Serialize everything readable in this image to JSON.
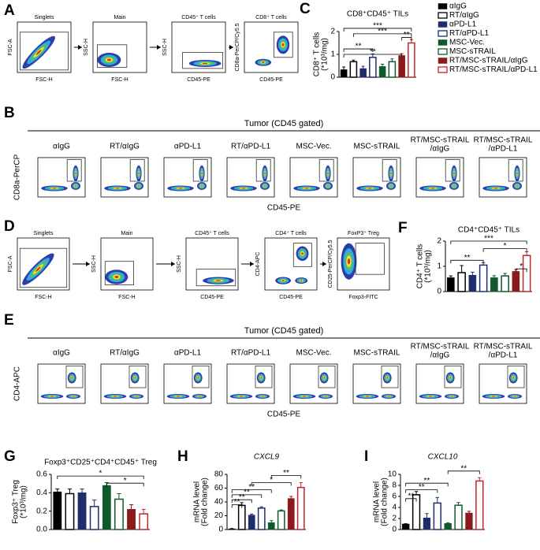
{
  "flow": {
    "A": {
      "letter": "A",
      "plots": [
        {
          "title": "Singlets",
          "ylabel": "FSC-A",
          "xlabel": "FSC-H"
        },
        {
          "title": "Main",
          "ylabel": "SSC-H",
          "xlabel": "FSC-H"
        },
        {
          "title": "CD45⁺ T cells",
          "ylabel": "SSC-H",
          "xlabel": "CD45-PE"
        },
        {
          "title": "CD8⁺ T cells",
          "ylabel": "CD8a-PerCP/Cy5.5",
          "xlabel": "CD45-PE"
        }
      ]
    },
    "B": {
      "letter": "B",
      "title": "Tumor (CD45 gated)",
      "ylabel": "CD8a-PerCP",
      "xlabel": "CD45-PE",
      "groups": [
        [
          "αIgG"
        ],
        [
          "RT/αIgG"
        ],
        [
          "αPD-L1"
        ],
        [
          "RT/αPD-L1"
        ],
        [
          "MSC-Vec."
        ],
        [
          "MSC-sTRAIL"
        ],
        [
          "RT/MSC-sTRAIL",
          "/αIgG"
        ],
        [
          "RT/MSC-sTRAIL",
          "/αPD-L1"
        ]
      ]
    },
    "D": {
      "letter": "D",
      "plots": [
        {
          "title": "Singlets",
          "ylabel": "FSC-A",
          "xlabel": "FSC-H"
        },
        {
          "title": "Main",
          "ylabel": "SSC-H",
          "xlabel": "FSC-H"
        },
        {
          "title": "CD45⁺ T cells",
          "ylabel": "SSC-H",
          "xlabel": "CD45-PE"
        },
        {
          "title": "CD4⁺ T cells",
          "ylabel": "CD4-APC",
          "xlabel": "CD45-PE"
        },
        {
          "title": "FoxP3⁺ Treg",
          "ylabel": "CD25-PerCP/Cy5.5",
          "xlabel": "Foxp3-FITC"
        }
      ]
    },
    "E": {
      "letter": "E",
      "title": "Tumor (CD45 gated)",
      "ylabel": "CD4-APC",
      "xlabel": "CD45-PE",
      "groups": [
        [
          "αIgG"
        ],
        [
          "RT/αIgG"
        ],
        [
          "αPD-L1"
        ],
        [
          "RT/αPD-L1"
        ],
        [
          "MSC-Vec."
        ],
        [
          "MSC-sTRAIL"
        ],
        [
          "RT/MSC-sTRAIL",
          "/αIgG"
        ],
        [
          "RT/MSC-sTRAIL",
          "/αPD-L1"
        ]
      ]
    }
  },
  "chart_data": [
    {
      "type": "bar",
      "panel": "C",
      "title": "CD8⁺CD45⁺ TILs",
      "ylabel": [
        "CD8⁺ T cells",
        "(*10³/mg)"
      ],
      "ylim": [
        0,
        2
      ],
      "yticks": [
        0,
        1,
        2
      ],
      "legend": "right",
      "series": [
        {
          "name": "αIgG",
          "color": "#000000",
          "hollow": false,
          "values": [
            0.33
          ],
          "errors": [
            0.12
          ]
        },
        {
          "name": "RT/αIgG",
          "color": "#000000",
          "hollow": true,
          "values": [
            0.68
          ],
          "errors": [
            0.07
          ]
        },
        {
          "name": "αPD-L1",
          "color": "#1f2d6b",
          "hollow": false,
          "values": [
            0.38
          ],
          "errors": [
            0.1
          ]
        },
        {
          "name": "RT/αPD-L1",
          "color": "#1f2d6b",
          "hollow": true,
          "values": [
            0.87
          ],
          "errors": [
            0.15
          ]
        },
        {
          "name": "MSC-Vec.",
          "color": "#0e5a2c",
          "hollow": false,
          "values": [
            0.47
          ],
          "errors": [
            0.1
          ]
        },
        {
          "name": "MSC-sTRAIL",
          "color": "#0e5a2c",
          "hollow": true,
          "values": [
            0.68
          ],
          "errors": [
            0.12
          ]
        },
        {
          "name": "RT/MSC-sTRAIL/αIgG",
          "color": "#8b1a1a",
          "hollow": false,
          "values": [
            0.95
          ],
          "errors": [
            0.08
          ]
        },
        {
          "name": "RT/MSC-sTRAIL/αPD-L1",
          "color": "#c0272d",
          "hollow": true,
          "values": [
            1.5
          ],
          "errors": [
            0.15
          ]
        }
      ],
      "annotations": [
        "***",
        "***",
        "**",
        "**",
        "**"
      ]
    },
    {
      "type": "bar",
      "panel": "F",
      "title": "CD4⁺CD45⁺ TILs",
      "ylabel": [
        "CD4⁺ T cells",
        "(*10³/mg)"
      ],
      "ylim": [
        0,
        2
      ],
      "yticks": [
        0,
        1,
        2
      ],
      "values": [
        0.55,
        0.75,
        0.65,
        1.05,
        0.55,
        0.62,
        0.8,
        1.43
      ],
      "errors": [
        0.07,
        0.28,
        0.12,
        0.1,
        0.08,
        0.1,
        0.07,
        0.15
      ],
      "colors": [
        "#000000",
        "#000000",
        "#1f2d6b",
        "#1f2d6b",
        "#0e5a2c",
        "#0e5a2c",
        "#8b1a1a",
        "#c0272d"
      ],
      "hollow": [
        false,
        true,
        false,
        true,
        false,
        true,
        false,
        true
      ],
      "annotations": [
        "***",
        "*",
        "**",
        "*"
      ]
    },
    {
      "type": "bar",
      "panel": "G",
      "title": "Foxp3⁺CD25⁺CD4⁺CD45⁺ Treg",
      "ylabel": [
        "Foxp3⁺ Treg",
        "(*10³/mg)"
      ],
      "ylim": [
        0,
        0.6
      ],
      "yticks": [
        {
          "value": 0,
          "label": "0.0"
        },
        {
          "value": 0.2,
          "label": "0.2"
        },
        {
          "value": 0.4,
          "label": "0.4"
        },
        {
          "value": 0.6,
          "label": "0.6"
        }
      ],
      "values": [
        0.41,
        0.39,
        0.4,
        0.25,
        0.48,
        0.33,
        0.22,
        0.17
      ],
      "errors": [
        0.03,
        0.05,
        0.04,
        0.07,
        0.03,
        0.06,
        0.05,
        0.05
      ],
      "colors": [
        "#000000",
        "#000000",
        "#1f2d6b",
        "#1f2d6b",
        "#0e5a2c",
        "#0e5a2c",
        "#8b1a1a",
        "#c0272d"
      ],
      "hollow": [
        false,
        true,
        false,
        true,
        false,
        true,
        false,
        true
      ],
      "annotations": [
        "*",
        "*"
      ]
    },
    {
      "type": "bar",
      "panel": "H",
      "title": "CXCL9",
      "ylabel": [
        "mRNA level",
        "(Fold change)"
      ],
      "ylim": [
        0,
        80
      ],
      "yticks": [
        0,
        20,
        40,
        60,
        80
      ],
      "values": [
        1,
        35,
        21,
        31,
        10,
        27,
        45,
        61
      ],
      "errors": [
        0.5,
        4,
        1.5,
        2,
        3,
        1.5,
        3,
        7
      ],
      "colors": [
        "#000000",
        "#000000",
        "#1f2d6b",
        "#1f2d6b",
        "#0e5a2c",
        "#0e5a2c",
        "#8b1a1a",
        "#c0272d"
      ],
      "hollow": [
        false,
        true,
        false,
        true,
        false,
        true,
        false,
        true
      ],
      "annotations": [
        "**",
        "*",
        "**",
        "**",
        "**",
        "**"
      ]
    },
    {
      "type": "bar",
      "panel": "I",
      "title": "CXCL10",
      "ylabel": [
        "mRNA level",
        "(Fold change)"
      ],
      "ylim": [
        0,
        10
      ],
      "yticks": [
        0,
        2,
        4,
        6,
        8,
        10
      ],
      "values": [
        1,
        6.3,
        2.1,
        4.8,
        1.1,
        4.4,
        3,
        8.8
      ],
      "errors": [
        0.05,
        0.6,
        0.8,
        1,
        0.1,
        0.5,
        0.3,
        0.6
      ],
      "colors": [
        "#000000",
        "#000000",
        "#1f2d6b",
        "#1f2d6b",
        "#0e5a2c",
        "#0e5a2c",
        "#8b1a1a",
        "#c0272d"
      ],
      "hollow": [
        false,
        true,
        false,
        true,
        false,
        true,
        false,
        true
      ],
      "annotations": [
        "**",
        "**",
        "**",
        "**"
      ]
    }
  ]
}
